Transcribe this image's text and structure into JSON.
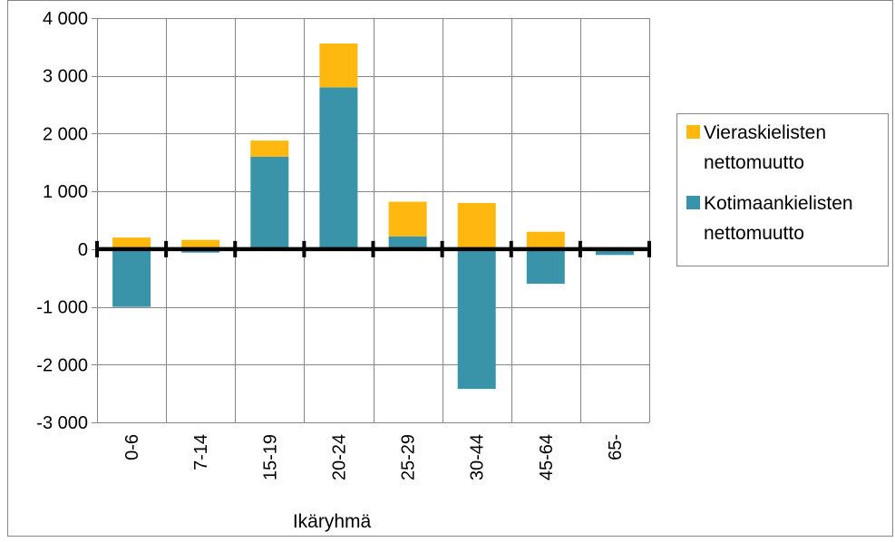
{
  "chart_data": {
    "type": "bar",
    "stacked": true,
    "title": "",
    "xlabel": "Ikäryhmä",
    "ylabel": "",
    "ylim": [
      -3000,
      4000
    ],
    "yticks": [
      -3000,
      -2000,
      -1000,
      0,
      1000,
      2000,
      3000,
      4000
    ],
    "ytick_labels": [
      "-3 000",
      "-2 000",
      "-1 000",
      "0",
      "1 000",
      "2 000",
      "3 000",
      "4 000"
    ],
    "categories": [
      "0-6",
      "7-14",
      "15-19",
      "20-24",
      "25-29",
      "30-44",
      "45-64",
      "65-"
    ],
    "series": [
      {
        "name": "Kotimaankielisten nettomuutto",
        "name_lines": [
          "Kotimaankielisten",
          "nettomuutto"
        ],
        "color": "#3a94a9",
        "values": [
          -1000,
          -60,
          1600,
          2800,
          220,
          -2420,
          -600,
          -100
        ]
      },
      {
        "name": "Vieraskielisten nettomuutto",
        "name_lines": [
          "Vieraskielisten",
          "nettomuutto"
        ],
        "color": "#ffb80f",
        "values": [
          200,
          160,
          280,
          760,
          600,
          800,
          300,
          0
        ]
      }
    ],
    "legend_order": [
      1,
      0
    ],
    "grid": true,
    "legend_position": "right"
  }
}
